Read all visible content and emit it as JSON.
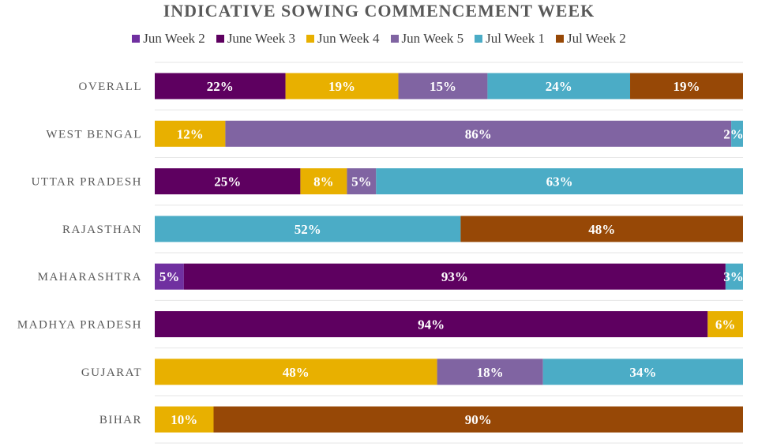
{
  "chart_data": {
    "type": "bar",
    "orientation": "horizontal",
    "stacked": "percent",
    "title": "INDICATIVE SOWING COMMENCEMENT WEEK",
    "categories": [
      "OVERALL",
      "WEST BENGAL",
      "UTTAR PRADESH",
      "RAJASTHAN",
      "MAHARASHTRA",
      "MADHYA PRADESH",
      "GUJARAT",
      "BIHAR"
    ],
    "xlim": [
      0,
      100
    ],
    "legend": "top",
    "grid": true,
    "series": [
      {
        "name": "Jun Week 2",
        "color": "#7030A0",
        "values": [
          0,
          0,
          0,
          0,
          5,
          0,
          0,
          0
        ]
      },
      {
        "name": "June Week 3",
        "color": "#5E0060",
        "values": [
          22,
          0,
          25,
          0,
          93,
          94,
          0,
          0
        ]
      },
      {
        "name": "Jun Week 4",
        "color": "#E8B000",
        "values": [
          19,
          12,
          8,
          0,
          0,
          6,
          48,
          10
        ]
      },
      {
        "name": "Jun Week 5",
        "color": "#8064A2",
        "values": [
          15,
          86,
          5,
          0,
          0,
          0,
          18,
          0
        ]
      },
      {
        "name": "Jul Week 1",
        "color": "#4BACC6",
        "values": [
          24,
          2,
          63,
          52,
          3,
          0,
          34,
          0
        ]
      },
      {
        "name": "Jul Week 2",
        "color": "#974806",
        "values": [
          19,
          0,
          0,
          48,
          0,
          0,
          0,
          90
        ]
      }
    ]
  }
}
